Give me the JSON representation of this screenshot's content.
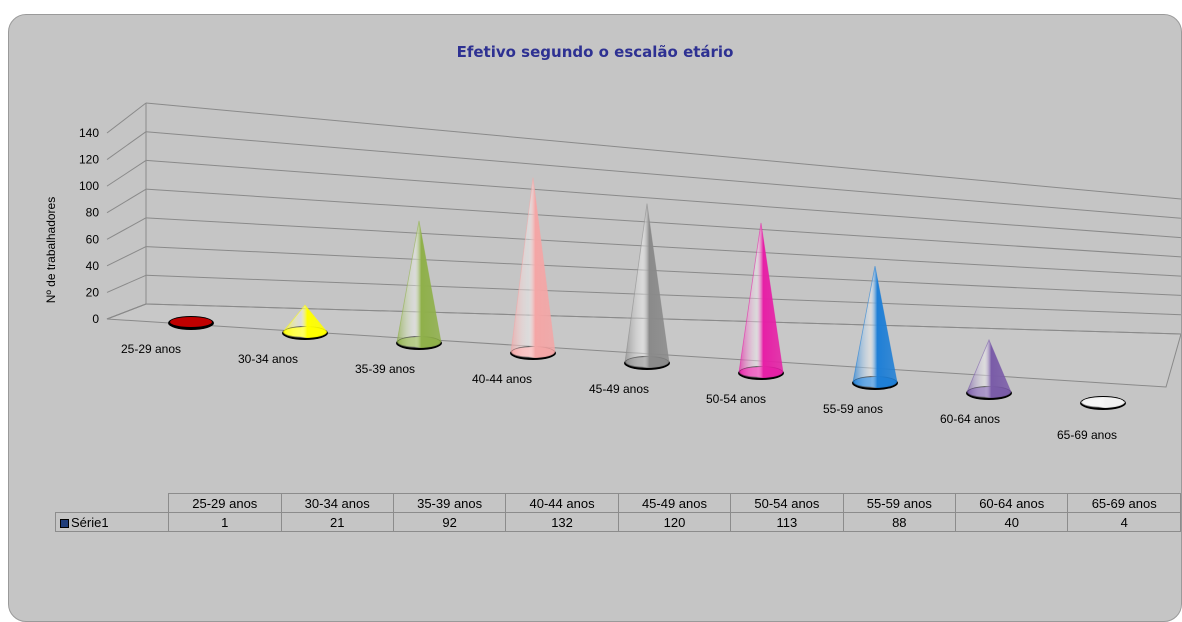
{
  "chart_data": {
    "type": "bar",
    "title": "Efetivo segundo o escalão etário",
    "ylabel": "Nº de trabalhadores",
    "xlabel": "",
    "ylim": [
      0,
      140
    ],
    "yticks": [
      "0",
      "20",
      "40",
      "60",
      "80",
      "100",
      "120",
      "140"
    ],
    "categories": [
      "25-29 anos",
      "30-34 anos",
      "35-39 anos",
      "40-44 anos",
      "45-49 anos",
      "50-54 anos",
      "55-59 anos",
      "60-64 anos",
      "65-69 anos"
    ],
    "series": [
      {
        "name": "Série1",
        "values": [
          1,
          21,
          92,
          132,
          120,
          113,
          88,
          40,
          4
        ]
      }
    ],
    "colors": [
      "#c00000",
      "#ffff00",
      "#8fb04a",
      "#f4a6a6",
      "#8a8a8a",
      "#e620a6",
      "#1f7fd6",
      "#7a5ca8",
      "#f2f2f2"
    ],
    "grid": true,
    "legend": "data-table"
  }
}
